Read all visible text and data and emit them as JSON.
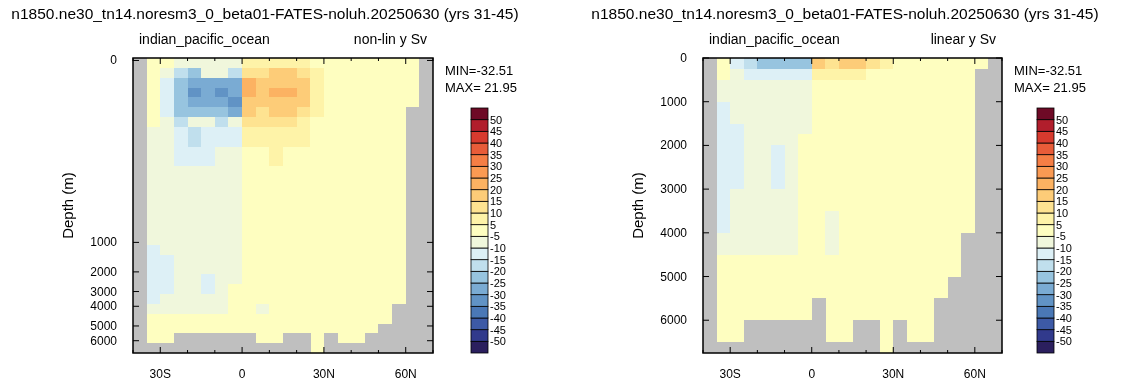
{
  "chart_data": [
    {
      "type": "heatmap",
      "title": "n1850.ne30_tn14.noresm3_0_beta01-FATES-noluh.20250630 (yrs 31-45)",
      "subtitle": "indian_pacific_ocean",
      "ylabel": "Depth (m)",
      "annotations": [
        "non-lin y Sv",
        "MIN=-32.51",
        "MAX= 21.95"
      ],
      "x": [
        -37.5,
        -32.5,
        -27.5,
        -22.5,
        -17.5,
        -12.5,
        -7.5,
        -2.5,
        2.5,
        7.5,
        12.5,
        17.5,
        22.5,
        27.5,
        32.5,
        37.5,
        42.5,
        47.5,
        52.5,
        57.5,
        62.5,
        67.5
      ],
      "y_categories": [
        "0",
        null,
        null,
        null,
        null,
        null,
        null,
        null,
        null,
        null,
        null,
        null,
        null,
        null,
        null,
        null,
        null,
        null,
        null,
        null,
        null,
        null,
        null,
        null,
        null,
        null,
        null,
        null,
        null,
        null,
        null,
        null,
        null,
        null,
        null,
        null,
        null,
        "1000",
        null,
        null,
        null,
        null,
        null,
        "2000",
        null,
        null,
        null,
        "3000",
        null,
        null,
        "4000",
        null,
        null,
        null,
        "5000",
        null,
        null,
        "6000",
        null,
        null
      ],
      "xlim": [
        -40,
        70
      ],
      "xticks": [
        {
          "value": -40,
          "label": null
        },
        {
          "value": -30,
          "label": "30S"
        },
        {
          "value": -20,
          "label": null
        },
        {
          "value": -10,
          "label": null
        },
        {
          "value": 0,
          "label": "0"
        },
        {
          "value": 10,
          "label": null
        },
        {
          "value": 20,
          "label": null
        },
        {
          "value": 30,
          "label": "30N"
        },
        {
          "value": 40,
          "label": null
        },
        {
          "value": 50,
          "label": null
        },
        {
          "value": 60,
          "label": "60N"
        },
        {
          "value": 70,
          "label": null
        }
      ],
      "cticks": [
        -50,
        -45,
        -40,
        -35,
        -30,
        -25,
        -20,
        -15,
        -10,
        -5,
        5,
        10,
        15,
        20,
        25,
        30,
        35,
        40,
        45,
        50
      ],
      "colors": [
        "#2b1f5e",
        "#313a8c",
        "#3d5aa6",
        "#4a78b6",
        "#6193c5",
        "#7aabd3",
        "#97c4df",
        "#c0dfed",
        "#ddf0f6",
        "#f0f7dc",
        "#fefec0",
        "#fef3a8",
        "#fee391",
        "#fdcc78",
        "#fcb262",
        "#fa9a53",
        "#f57e45",
        "#e85c39",
        "#d73a2e",
        "#b11e2c",
        "#6e0a26"
      ],
      "cells": [
        [
          null,
          -2,
          2,
          -8,
          -9,
          -9,
          -9,
          -8,
          7,
          6,
          6,
          6,
          5,
          2,
          1,
          1,
          0,
          0,
          0,
          0,
          0,
          null
        ],
        [
          null,
          -2,
          2,
          -8,
          -9,
          -9,
          -9,
          -8,
          7,
          6,
          6,
          6,
          5,
          2,
          1,
          1,
          0,
          0,
          0,
          0,
          0,
          null
        ],
        [
          null,
          -3,
          -6,
          -18,
          -22,
          -9,
          -9,
          -18,
          14,
          14,
          16,
          15,
          12,
          6,
          2,
          1,
          0,
          0,
          0,
          0,
          0,
          null
        ],
        [
          null,
          -3,
          -6,
          -18,
          -22,
          -9,
          -9,
          -18,
          14,
          14,
          16,
          15,
          12,
          6,
          2,
          1,
          0,
          0,
          0,
          0,
          0,
          null
        ],
        [
          null,
          -3,
          -12,
          -22,
          -28,
          -27,
          -26,
          -26,
          20,
          15,
          18,
          19,
          16,
          8,
          2,
          1,
          0,
          0,
          0,
          0,
          0,
          null
        ],
        [
          null,
          -3,
          -12,
          -22,
          -28,
          -27,
          -26,
          -26,
          20,
          15,
          18,
          19,
          16,
          8,
          2,
          1,
          0,
          0,
          0,
          0,
          0,
          null
        ],
        [
          null,
          -3,
          -13,
          -24,
          -32,
          -28,
          -32,
          -30,
          21,
          16,
          20,
          22,
          17,
          8,
          2,
          1,
          0,
          0,
          0,
          0,
          0,
          null
        ],
        [
          null,
          -3,
          -13,
          -24,
          -32,
          -28,
          -32,
          -30,
          21,
          16,
          20,
          22,
          17,
          8,
          2,
          1,
          0,
          0,
          0,
          0,
          0,
          null
        ],
        [
          null,
          -3,
          -13,
          -24,
          -28,
          -26,
          -28,
          -32,
          19,
          15,
          19,
          19,
          15,
          7,
          2,
          1,
          0,
          0,
          0,
          0,
          0,
          null
        ],
        [
          null,
          -3,
          -13,
          -24,
          -28,
          -26,
          -28,
          -32,
          19,
          15,
          19,
          19,
          15,
          7,
          2,
          1,
          0,
          0,
          0,
          0,
          0,
          null
        ],
        [
          null,
          -3,
          -12,
          -22,
          -25,
          -24,
          -24,
          -27,
          16,
          14,
          16,
          16,
          12,
          6,
          2,
          1,
          0,
          0,
          0,
          0,
          null,
          null
        ],
        [
          null,
          -3,
          -12,
          -22,
          -25,
          -24,
          -24,
          -27,
          16,
          14,
          16,
          16,
          12,
          6,
          2,
          1,
          0,
          0,
          0,
          0,
          null,
          null
        ],
        [
          null,
          -3,
          -6,
          -18,
          -9,
          -9,
          -19,
          -9,
          12,
          11,
          13,
          13,
          9,
          4,
          1,
          0,
          0,
          0,
          0,
          0,
          null,
          null
        ],
        [
          null,
          -3,
          -6,
          -18,
          -9,
          -9,
          -19,
          -9,
          12,
          11,
          13,
          13,
          9,
          4,
          1,
          0,
          0,
          0,
          0,
          0,
          null,
          null
        ],
        [
          null,
          -6,
          -8,
          -14,
          -16,
          -11,
          -14,
          -14,
          8,
          8,
          9,
          8,
          6,
          2,
          1,
          0,
          0,
          0,
          0,
          0,
          null,
          null
        ],
        [
          null,
          -6,
          -8,
          -14,
          -16,
          -11,
          -14,
          -14,
          8,
          8,
          9,
          8,
          6,
          2,
          1,
          0,
          0,
          0,
          0,
          0,
          null,
          null
        ],
        [
          null,
          -6,
          -8,
          -14,
          -16,
          -11,
          -14,
          -14,
          8,
          8,
          9,
          8,
          6,
          2,
          1,
          0,
          0,
          0,
          0,
          0,
          null,
          null
        ],
        [
          null,
          -6,
          -8,
          -14,
          -16,
          -11,
          -14,
          -14,
          8,
          8,
          9,
          8,
          6,
          2,
          1,
          0,
          0,
          0,
          0,
          0,
          null,
          null
        ],
        [
          null,
          -6,
          -7,
          -11,
          -12,
          -11,
          -6,
          -9,
          4,
          4,
          5,
          4,
          3,
          1,
          0,
          0,
          0,
          0,
          0,
          0,
          null,
          null
        ],
        [
          null,
          -6,
          -7,
          -11,
          -12,
          -11,
          -6,
          -9,
          4,
          4,
          5,
          4,
          3,
          1,
          0,
          0,
          0,
          0,
          0,
          0,
          null,
          null
        ],
        [
          null,
          -6,
          -7,
          -11,
          -12,
          -11,
          -6,
          -9,
          4,
          4,
          5,
          4,
          3,
          1,
          0,
          0,
          0,
          0,
          0,
          0,
          null,
          null
        ],
        [
          null,
          -6,
          -7,
          -11,
          -12,
          -11,
          -6,
          -9,
          4,
          4,
          5,
          4,
          3,
          1,
          0,
          0,
          0,
          0,
          0,
          0,
          null,
          null
        ],
        [
          null,
          -9,
          -6,
          -8,
          -8,
          -7,
          -7,
          -6,
          2,
          2,
          2,
          2,
          1,
          0,
          0,
          0,
          0,
          0,
          0,
          0,
          null,
          null
        ],
        [
          null,
          -9,
          -6,
          -8,
          -8,
          -7,
          -7,
          -6,
          2,
          2,
          2,
          2,
          1,
          0,
          0,
          0,
          0,
          0,
          0,
          0,
          null,
          null
        ],
        [
          null,
          -9,
          -6,
          -8,
          -8,
          -7,
          -7,
          -6,
          2,
          2,
          2,
          2,
          1,
          0,
          0,
          0,
          0,
          0,
          0,
          0,
          null,
          null
        ],
        [
          null,
          -9,
          -6,
          -8,
          -8,
          -7,
          -7,
          -6,
          2,
          2,
          2,
          2,
          1,
          0,
          0,
          0,
          0,
          0,
          0,
          0,
          null,
          null
        ],
        [
          null,
          -7,
          -6,
          -6,
          -6,
          -6,
          -6,
          -6,
          1,
          1,
          1,
          1,
          0,
          0,
          0,
          0,
          0,
          0,
          0,
          0,
          null,
          null
        ],
        [
          null,
          -7,
          -6,
          -6,
          -6,
          -6,
          -6,
          -6,
          1,
          1,
          1,
          1,
          0,
          0,
          0,
          0,
          0,
          0,
          0,
          0,
          null,
          null
        ],
        [
          null,
          -7,
          -6,
          -6,
          -6,
          -6,
          -6,
          -6,
          1,
          1,
          1,
          1,
          0,
          0,
          0,
          0,
          0,
          0,
          0,
          0,
          null,
          null
        ],
        [
          null,
          -7,
          -6,
          -6,
          -6,
          -6,
          -6,
          -6,
          1,
          1,
          1,
          1,
          0,
          0,
          0,
          0,
          0,
          0,
          0,
          0,
          null,
          null
        ],
        [
          null,
          -7,
          -6,
          -6,
          -6,
          -6,
          -6,
          -6,
          1,
          1,
          1,
          0,
          0,
          0,
          0,
          0,
          0,
          0,
          0,
          0,
          null,
          null
        ],
        [
          null,
          -7,
          -6,
          -6,
          -6,
          -6,
          -6,
          -6,
          1,
          1,
          1,
          0,
          0,
          0,
          0,
          0,
          0,
          0,
          0,
          0,
          null,
          null
        ],
        [
          null,
          -7,
          -6,
          -6,
          -6,
          -6,
          -6,
          -6,
          1,
          1,
          1,
          0,
          0,
          0,
          0,
          0,
          0,
          0,
          0,
          0,
          null,
          null
        ],
        [
          null,
          -7,
          -6,
          -6,
          -6,
          -6,
          -6,
          -6,
          1,
          1,
          1,
          0,
          0,
          0,
          0,
          0,
          0,
          0,
          0,
          0,
          null,
          null
        ],
        [
          null,
          -7,
          -6,
          -6,
          -6,
          -6,
          -6,
          -6,
          1,
          1,
          1,
          0,
          0,
          0,
          0,
          0,
          0,
          0,
          0,
          0,
          null,
          null
        ],
        [
          null,
          -7,
          -6,
          -6,
          -6,
          -6,
          -6,
          -6,
          1,
          1,
          1,
          0,
          0,
          0,
          0,
          0,
          0,
          0,
          0,
          0,
          null,
          null
        ],
        [
          null,
          -7,
          -6,
          -6,
          -6,
          -6,
          -6,
          -6,
          1,
          1,
          1,
          0,
          0,
          0,
          0,
          0,
          0,
          0,
          0,
          0,
          null,
          null
        ],
        [
          null,
          -7,
          -6,
          -6,
          -6,
          -6,
          -6,
          -6,
          1,
          1,
          1,
          0,
          0,
          0,
          0,
          0,
          0,
          0,
          0,
          0,
          null,
          null
        ],
        [
          null,
          -11,
          -6,
          -6,
          -6,
          -6,
          -6,
          -6,
          0,
          0,
          0,
          0,
          0,
          0,
          0,
          0,
          0,
          0,
          0,
          0,
          null,
          null
        ],
        [
          null,
          -11,
          -6,
          -6,
          -6,
          -6,
          -6,
          -6,
          0,
          0,
          0,
          0,
          0,
          0,
          0,
          0,
          0,
          0,
          0,
          0,
          null,
          null
        ],
        [
          null,
          -11,
          -11,
          -9,
          -6,
          -6,
          -6,
          -6,
          -1,
          0,
          0,
          0,
          0,
          0,
          0,
          0,
          0,
          0,
          0,
          0,
          null,
          null
        ],
        [
          null,
          -11,
          -11,
          -9,
          -6,
          -6,
          -6,
          -6,
          -1,
          0,
          0,
          0,
          0,
          0,
          0,
          0,
          0,
          0,
          0,
          0,
          null,
          null
        ],
        [
          null,
          -11,
          -11,
          -9,
          -6,
          -6,
          -6,
          -6,
          -1,
          0,
          0,
          0,
          0,
          0,
          0,
          0,
          0,
          0,
          0,
          0,
          null,
          null
        ],
        [
          null,
          -11,
          -11,
          -9,
          -6,
          -6,
          -6,
          -6,
          -1,
          0,
          0,
          0,
          0,
          0,
          0,
          0,
          0,
          0,
          0,
          0,
          null,
          null
        ],
        [
          null,
          -11,
          -11,
          -7,
          -6,
          -11,
          -6,
          -6,
          -2,
          -1,
          0,
          0,
          0,
          0,
          0,
          0,
          0,
          0,
          0,
          0,
          null,
          null
        ],
        [
          null,
          -11,
          -11,
          -7,
          -6,
          -11,
          -6,
          -6,
          -2,
          -1,
          0,
          0,
          0,
          0,
          0,
          0,
          0,
          0,
          0,
          0,
          null,
          null
        ],
        [
          null,
          -11,
          -11,
          -7,
          -6,
          -11,
          -6,
          2,
          -2,
          -1,
          0,
          0,
          0,
          0,
          0,
          0,
          0,
          0,
          0,
          0,
          null,
          null
        ],
        [
          null,
          -11,
          -11,
          -7,
          -6,
          -11,
          -6,
          2,
          -2,
          -1,
          0,
          0,
          0,
          0,
          0,
          0,
          0,
          0,
          0,
          0,
          null,
          null
        ],
        [
          null,
          -11,
          -6,
          -7,
          -6,
          -6,
          -6,
          2,
          -2,
          -2,
          0,
          0,
          0,
          0,
          0,
          0,
          0,
          0,
          0,
          0,
          null,
          null
        ],
        [
          null,
          -11,
          -6,
          -7,
          -6,
          -6,
          -6,
          2,
          -2,
          -2,
          0,
          0,
          0,
          0,
          0,
          0,
          0,
          0,
          0,
          0,
          null,
          null
        ],
        [
          null,
          -6,
          -6,
          -6,
          -6,
          -6,
          -6,
          2,
          -3,
          -6,
          -1,
          0,
          0,
          0,
          0,
          0,
          0,
          0,
          0,
          null,
          null,
          null
        ],
        [
          null,
          -6,
          -6,
          -6,
          -6,
          -6,
          -6,
          2,
          -3,
          -6,
          -1,
          0,
          0,
          0,
          0,
          0,
          0,
          0,
          0,
          null,
          null,
          null
        ],
        [
          null,
          -3,
          -2,
          -2,
          -2,
          -2,
          -2,
          -1,
          -1,
          -1,
          0,
          0,
          0,
          0,
          0,
          0,
          0,
          0,
          0,
          null,
          null,
          null
        ],
        [
          null,
          -3,
          -2,
          -2,
          -2,
          -2,
          -2,
          -1,
          -1,
          -1,
          0,
          0,
          0,
          0,
          0,
          0,
          0,
          0,
          0,
          null,
          null,
          null
        ],
        [
          null,
          -1,
          -1,
          -1,
          -1,
          -1,
          -1,
          -1,
          0,
          0,
          0,
          0,
          0,
          0,
          0,
          0,
          0,
          0,
          null,
          null,
          null,
          null
        ],
        [
          null,
          -1,
          -1,
          -1,
          -1,
          -1,
          -1,
          -1,
          0,
          0,
          0,
          0,
          0,
          0,
          0,
          0,
          0,
          0,
          null,
          null,
          null,
          null
        ],
        [
          null,
          0,
          0,
          null,
          null,
          null,
          null,
          null,
          null,
          0,
          0,
          null,
          null,
          0,
          null,
          0,
          0,
          null,
          null,
          null,
          null,
          null
        ],
        [
          null,
          0,
          0,
          null,
          null,
          null,
          null,
          null,
          null,
          0,
          0,
          null,
          null,
          0,
          null,
          0,
          0,
          null,
          null,
          null,
          null,
          null
        ],
        [
          null,
          null,
          null,
          null,
          null,
          null,
          null,
          null,
          null,
          null,
          null,
          null,
          null,
          0,
          null,
          null,
          null,
          null,
          null,
          null,
          null,
          null
        ],
        [
          null,
          null,
          null,
          null,
          null,
          null,
          null,
          null,
          null,
          null,
          null,
          null,
          null,
          0,
          null,
          null,
          null,
          null,
          null,
          null,
          null,
          null
        ]
      ]
    },
    {
      "type": "heatmap",
      "title": "n1850.ne30_tn14.noresm3_0_beta01-FATES-noluh.20250630 (yrs 31-45)",
      "subtitle": "indian_pacific_ocean",
      "ylabel": "Depth (m)",
      "annotations": [
        "linear y Sv",
        "MIN=-32.51",
        "MAX= 21.95"
      ],
      "x": [
        -37.5,
        -32.5,
        -27.5,
        -22.5,
        -17.5,
        -12.5,
        -7.5,
        -2.5,
        2.5,
        7.5,
        12.5,
        17.5,
        22.5,
        27.5,
        32.5,
        37.5,
        42.5,
        47.5,
        52.5,
        57.5,
        62.5,
        67.5
      ],
      "y": [
        125,
        375,
        625,
        875,
        1125,
        1375,
        1625,
        1875,
        2125,
        2375,
        2625,
        2875,
        3125,
        3375,
        3625,
        3875,
        4125,
        4375,
        4625,
        4875,
        5125,
        5375,
        5625,
        5875,
        6125,
        6375,
        6625
      ],
      "xlim": [
        -40,
        70
      ],
      "xticks": [
        {
          "value": -40,
          "label": null
        },
        {
          "value": -30,
          "label": "30S"
        },
        {
          "value": -20,
          "label": null
        },
        {
          "value": -10,
          "label": null
        },
        {
          "value": 0,
          "label": "0"
        },
        {
          "value": 10,
          "label": null
        },
        {
          "value": 20,
          "label": null
        },
        {
          "value": 30,
          "label": "30N"
        },
        {
          "value": 40,
          "label": null
        },
        {
          "value": 50,
          "label": null
        },
        {
          "value": 60,
          "label": "60N"
        },
        {
          "value": 70,
          "label": null
        }
      ],
      "ylim": [
        6750,
        0
      ],
      "yticks": [
        0,
        1000,
        2000,
        3000,
        4000,
        5000,
        6000
      ],
      "cticks": [
        -50,
        -45,
        -40,
        -35,
        -30,
        -25,
        -20,
        -15,
        -10,
        -5,
        5,
        10,
        15,
        20,
        25,
        30,
        35,
        40,
        45,
        50
      ],
      "colors": [
        "#2b1f5e",
        "#313a8c",
        "#3d5aa6",
        "#4a78b6",
        "#6193c5",
        "#7aabd3",
        "#97c4df",
        "#c0dfed",
        "#ddf0f6",
        "#f0f7dc",
        "#fefec0",
        "#fef3a8",
        "#fee391",
        "#fdcc78",
        "#fcb262",
        "#fa9a53",
        "#f57e45",
        "#e85c39",
        "#d73a2e",
        "#b11e2c",
        "#6e0a26"
      ],
      "cells": [
        [
          null,
          2,
          -13,
          -19,
          -24,
          -24,
          -24,
          -24,
          16,
          12,
          15,
          15,
          12,
          6,
          2,
          1,
          0,
          0,
          0,
          0,
          0,
          null
        ],
        [
          null,
          -3,
          -7,
          -12,
          -13,
          -12,
          -11,
          -11,
          6,
          6,
          7,
          6,
          3,
          0,
          0,
          0,
          0,
          0,
          0,
          0,
          null,
          null
        ],
        [
          null,
          -9,
          -7,
          -8,
          -8,
          -7,
          -7,
          -6,
          2,
          2,
          2,
          2,
          1,
          0,
          0,
          0,
          0,
          0,
          0,
          0,
          null,
          null
        ],
        [
          null,
          -6,
          -8,
          -7,
          -7,
          -6,
          -6,
          -6,
          1,
          1,
          1,
          0,
          0,
          0,
          0,
          0,
          0,
          0,
          0,
          0,
          null,
          null
        ],
        [
          null,
          -11,
          -9,
          -7,
          -7,
          -6,
          -6,
          -6,
          0,
          0,
          0,
          0,
          0,
          0,
          0,
          0,
          0,
          0,
          0,
          0,
          null,
          null
        ],
        [
          null,
          -11,
          -6,
          -8,
          -7,
          -6,
          -6,
          -6,
          0,
          0,
          0,
          0,
          0,
          0,
          0,
          0,
          0,
          0,
          0,
          0,
          null,
          null
        ],
        [
          null,
          -11,
          -11,
          -9,
          -7,
          -6,
          -6,
          -6,
          -1,
          0,
          0,
          0,
          0,
          0,
          0,
          0,
          0,
          0,
          0,
          0,
          null,
          null
        ],
        [
          null,
          -11,
          -11,
          -9,
          -7,
          -6,
          -6,
          0,
          -1,
          0,
          0,
          0,
          0,
          0,
          0,
          0,
          0,
          0,
          0,
          0,
          null,
          null
        ],
        [
          null,
          -11,
          -11,
          -6,
          -8,
          -11,
          -7,
          0,
          -2,
          -1,
          0,
          0,
          0,
          0,
          0,
          0,
          0,
          0,
          0,
          0,
          null,
          null
        ],
        [
          null,
          -11,
          -11,
          -6,
          -8,
          -11,
          -7,
          0,
          -2,
          -1,
          0,
          0,
          0,
          0,
          0,
          0,
          0,
          0,
          0,
          0,
          null,
          null
        ],
        [
          null,
          -11,
          -11,
          -6,
          -8,
          -11,
          -7,
          0,
          -2,
          -1,
          0,
          0,
          0,
          0,
          0,
          0,
          0,
          0,
          0,
          0,
          null,
          null
        ],
        [
          null,
          -11,
          -11,
          -6,
          -8,
          -11,
          -7,
          0,
          -2,
          -1,
          0,
          0,
          0,
          0,
          0,
          0,
          0,
          0,
          0,
          0,
          null,
          null
        ],
        [
          null,
          -11,
          -6,
          -9,
          -7,
          -8,
          -6,
          0,
          -2,
          -2,
          0,
          0,
          0,
          0,
          0,
          0,
          0,
          0,
          0,
          0,
          null,
          null
        ],
        [
          null,
          -11,
          -6,
          -9,
          -7,
          -8,
          -6,
          0,
          -2,
          -2,
          0,
          0,
          0,
          0,
          0,
          0,
          0,
          0,
          0,
          0,
          null,
          null
        ],
        [
          null,
          -11,
          -6,
          -8,
          -7,
          -7,
          -6,
          0,
          -3,
          -6,
          -1,
          0,
          0,
          0,
          0,
          0,
          0,
          0,
          0,
          0,
          null,
          null
        ],
        [
          null,
          -11,
          -6,
          -8,
          -7,
          -7,
          -6,
          0,
          -3,
          -6,
          -1,
          0,
          0,
          0,
          0,
          0,
          0,
          0,
          0,
          0,
          null,
          null
        ],
        [
          null,
          -6,
          -7,
          -6,
          -6,
          -6,
          -6,
          0,
          -3,
          -6,
          -1,
          0,
          0,
          0,
          0,
          0,
          0,
          0,
          0,
          null,
          null,
          null
        ],
        [
          null,
          -6,
          -7,
          -6,
          -6,
          -6,
          -6,
          0,
          -3,
          -6,
          -1,
          0,
          0,
          0,
          0,
          0,
          0,
          0,
          0,
          null,
          null,
          null
        ],
        [
          null,
          -3,
          -2,
          -2,
          -2,
          -2,
          -2,
          -1,
          -1,
          -1,
          0,
          0,
          0,
          0,
          0,
          0,
          0,
          0,
          0,
          null,
          null,
          null
        ],
        [
          null,
          -3,
          -2,
          -2,
          -2,
          -2,
          -2,
          -1,
          -1,
          -1,
          0,
          0,
          0,
          0,
          0,
          0,
          0,
          0,
          0,
          null,
          null,
          null
        ],
        [
          null,
          -1,
          -1,
          -1,
          -1,
          -1,
          -1,
          -1,
          0,
          0,
          0,
          0,
          0,
          0,
          0,
          0,
          0,
          0,
          null,
          null,
          null,
          null
        ],
        [
          null,
          -1,
          -1,
          -1,
          -1,
          -1,
          -1,
          -1,
          0,
          0,
          0,
          0,
          0,
          0,
          0,
          0,
          0,
          0,
          null,
          null,
          null,
          null
        ],
        [
          null,
          -1,
          -1,
          -1,
          -1,
          -1,
          -1,
          0,
          null,
          0,
          0,
          0,
          0,
          0,
          0,
          0,
          0,
          null,
          null,
          null,
          null,
          null
        ],
        [
          null,
          -1,
          -1,
          -1,
          -1,
          -1,
          -1,
          0,
          null,
          0,
          0,
          0,
          0,
          0,
          0,
          0,
          0,
          null,
          null,
          null,
          null,
          null
        ],
        [
          null,
          0,
          0,
          null,
          null,
          null,
          null,
          null,
          null,
          0,
          0,
          null,
          null,
          0,
          null,
          0,
          0,
          null,
          null,
          null,
          null,
          null
        ],
        [
          null,
          0,
          0,
          null,
          null,
          null,
          null,
          null,
          null,
          0,
          0,
          null,
          null,
          0,
          null,
          0,
          0,
          null,
          null,
          null,
          null,
          null
        ],
        [
          null,
          null,
          null,
          null,
          null,
          null,
          null,
          null,
          null,
          null,
          null,
          null,
          null,
          0,
          null,
          null,
          null,
          null,
          null,
          null,
          null,
          null
        ]
      ]
    }
  ]
}
